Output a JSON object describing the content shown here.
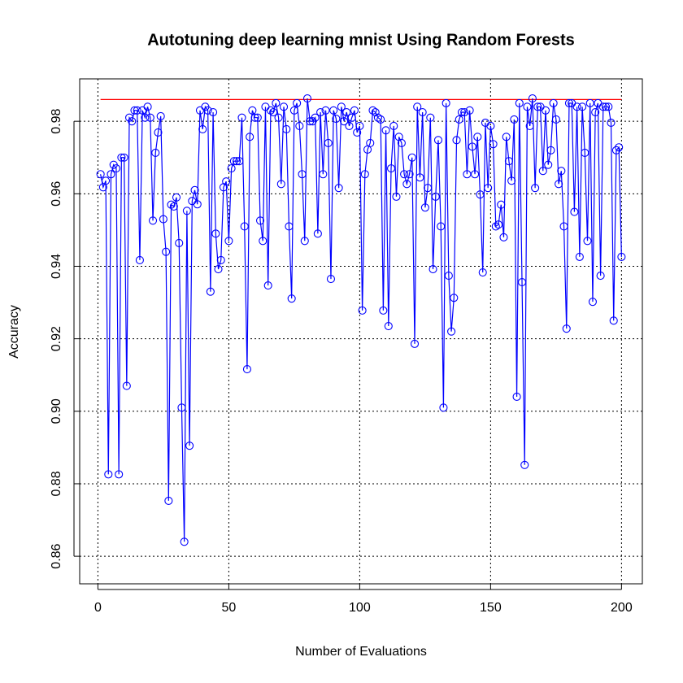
{
  "chart_data": {
    "type": "line",
    "title": "Autotuning deep learning mnist Using Random Forests",
    "xlabel": "Number of Evaluations",
    "ylabel": "Accuracy",
    "xlim": [
      -6.96,
      207.96
    ],
    "ylim": [
      0.8524,
      0.9917
    ],
    "xticks": [
      0,
      50,
      100,
      150,
      200
    ],
    "yticks": [
      0.86,
      0.88,
      {
        "value": 0.9,
        "label": "0.90"
      },
      0.92,
      0.94,
      0.96,
      0.98
    ],
    "grid": true,
    "reference_line": {
      "value": 0.986,
      "color": "#ff0000"
    },
    "x": [
      1,
      2,
      3,
      4,
      5,
      6,
      7,
      8,
      9,
      10,
      11,
      12,
      13,
      14,
      15,
      16,
      17,
      18,
      19,
      20,
      21,
      22,
      23,
      24,
      25,
      26,
      27,
      28,
      29,
      30,
      31,
      32,
      33,
      34,
      35,
      36,
      37,
      38,
      39,
      40,
      41,
      42,
      43,
      44,
      45,
      46,
      47,
      48,
      49,
      50,
      51,
      52,
      53,
      54,
      55,
      56,
      57,
      58,
      59,
      60,
      61,
      62,
      63,
      64,
      65,
      66,
      67,
      68,
      69,
      70,
      71,
      72,
      73,
      74,
      75,
      76,
      77,
      78,
      79,
      80,
      81,
      82,
      83,
      84,
      85,
      86,
      87,
      88,
      89,
      90,
      91,
      92,
      93,
      94,
      95,
      96,
      97,
      98,
      99,
      100,
      101,
      102,
      103,
      104,
      105,
      106,
      107,
      108,
      109,
      110,
      111,
      112,
      113,
      114,
      115,
      116,
      117,
      118,
      119,
      120,
      121,
      122,
      123,
      124,
      125,
      126,
      127,
      128,
      129,
      130,
      131,
      132,
      133,
      134,
      135,
      136,
      137,
      138,
      139,
      140,
      141,
      142,
      143,
      144,
      145,
      146,
      147,
      148,
      149,
      150,
      151,
      152,
      153,
      154,
      155,
      156,
      157,
      158,
      159,
      160,
      161,
      162,
      163,
      164,
      165,
      166,
      167,
      168,
      169,
      170,
      171,
      172,
      173,
      174,
      175,
      176,
      177,
      178,
      179,
      180,
      181,
      182,
      183,
      184,
      185,
      186,
      187,
      188,
      189,
      190,
      191,
      192,
      193,
      194,
      195,
      196,
      197,
      198,
      199,
      200
    ],
    "series": [
      {
        "color": "#0000ff",
        "values": [
          0.9654,
          0.9618,
          0.9636,
          0.8826,
          0.9654,
          0.968,
          0.967,
          0.8826,
          0.97,
          0.97,
          0.907,
          0.981,
          0.98,
          0.983,
          0.983,
          0.9417,
          0.983,
          0.981,
          0.984,
          0.981,
          0.9526,
          0.9713,
          0.9769,
          0.9814,
          0.953,
          0.944,
          0.8753,
          0.957,
          0.9565,
          0.959,
          0.9464,
          0.901,
          0.864,
          0.9553,
          0.8905,
          0.958,
          0.961,
          0.9571,
          0.983,
          0.9778,
          0.984,
          0.983,
          0.933,
          0.9825,
          0.949,
          0.9392,
          0.9417,
          0.9618,
          0.9634,
          0.947,
          0.967,
          0.969,
          0.969,
          0.969,
          0.981,
          0.951,
          0.9116,
          0.9757,
          0.983,
          0.981,
          0.981,
          0.9526,
          0.947,
          0.984,
          0.9347,
          0.983,
          0.9825,
          0.985,
          0.981,
          0.9627,
          0.984,
          0.9778,
          0.951,
          0.9311,
          0.983,
          0.985,
          0.9787,
          0.9654,
          0.947,
          0.9863,
          0.98,
          0.98,
          0.981,
          0.949,
          0.9825,
          0.9654,
          0.983,
          0.974,
          0.9365,
          0.983,
          0.9807,
          0.9616,
          0.984,
          0.98,
          0.9825,
          0.9787,
          0.981,
          0.983,
          0.9769,
          0.9787,
          0.9278,
          0.9654,
          0.9722,
          0.974,
          0.983,
          0.9825,
          0.981,
          0.9805,
          0.9278,
          0.9775,
          0.9235,
          0.967,
          0.9787,
          0.9592,
          0.9757,
          0.974,
          0.9654,
          0.9627,
          0.9654,
          0.97,
          0.9186,
          0.984,
          0.9645,
          0.9825,
          0.9562,
          0.9616,
          0.981,
          0.9392,
          0.9592,
          0.9748,
          0.951,
          0.901,
          0.985,
          0.9374,
          0.922,
          0.9313,
          0.9748,
          0.9805,
          0.9825,
          0.9825,
          0.9654,
          0.983,
          0.973,
          0.9654,
          0.9757,
          0.9598,
          0.9383,
          0.9796,
          0.9616,
          0.9787,
          0.9737,
          0.951,
          0.9515,
          0.957,
          0.948,
          0.9757,
          0.969,
          0.9636,
          0.9805,
          0.904,
          0.985,
          0.9356,
          0.8852,
          0.984,
          0.9787,
          0.9863,
          0.9616,
          0.984,
          0.984,
          0.9663,
          0.983,
          0.968,
          0.972,
          0.985,
          0.9805,
          0.9627,
          0.9663,
          0.951,
          0.9228,
          0.985,
          0.985,
          0.955,
          0.984,
          0.9426,
          0.984,
          0.9713,
          0.947,
          0.985,
          0.9302,
          0.9825,
          0.985,
          0.9374,
          0.984,
          0.984,
          0.984,
          0.9796,
          0.925,
          0.972,
          0.9728,
          0.9426
        ]
      }
    ]
  }
}
